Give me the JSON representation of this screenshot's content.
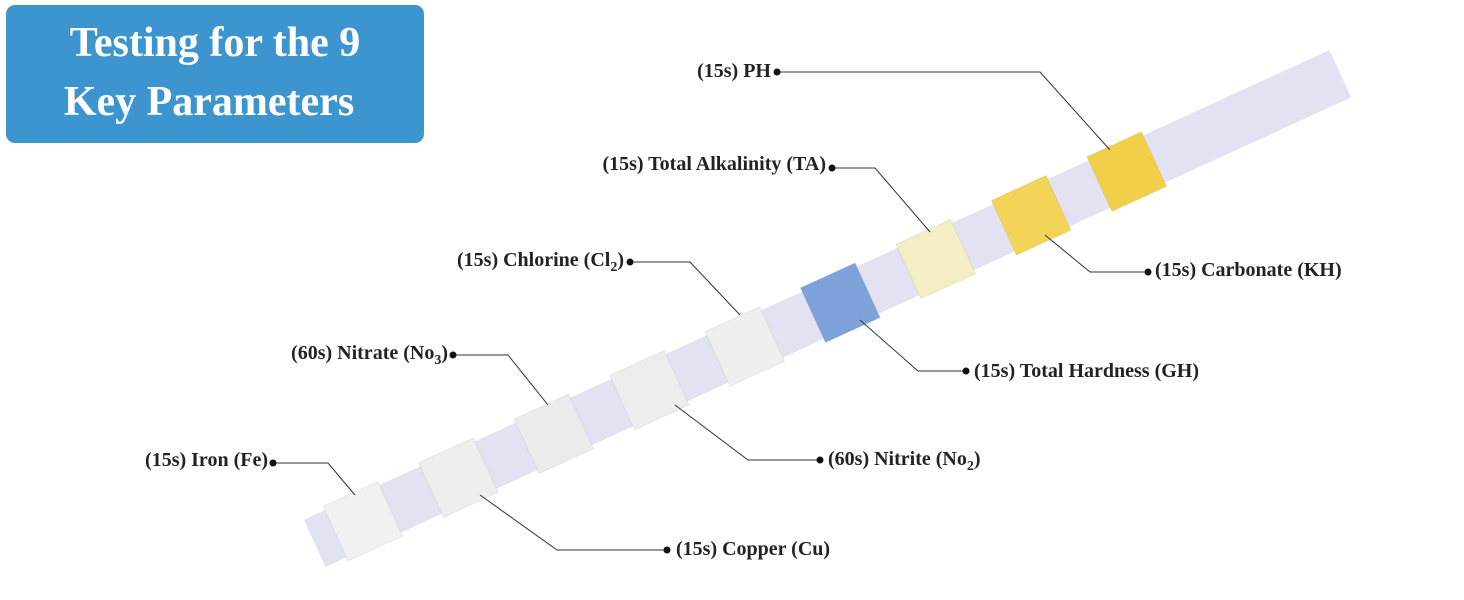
{
  "header": {
    "title_lines": [
      "Testing for the 9",
      "Key Parameters"
    ]
  },
  "parameters": [
    {
      "label": {
        "text": "(15s) Iron (Fe)"
      }
    },
    {
      "label": {
        "text": "(15s) Copper (Cu)"
      }
    },
    {
      "label": {
        "text": "(60s) Nitrate (No",
        "sub": "3",
        "end": ")"
      }
    },
    {
      "label": {
        "text": "(60s) Nitrite (No",
        "sub": "2",
        "end": ")"
      }
    },
    {
      "label": {
        "text": "(15s) Chlorine (Cl",
        "sub": "2",
        "end": ")"
      }
    },
    {
      "label": {
        "text": "(15s) Total Hardness (GH)"
      }
    },
    {
      "label": {
        "text": "(15s) Total Alkalinity (TA)"
      }
    },
    {
      "label": {
        "text": "(15s) Carbonate (KH)"
      }
    },
    {
      "label": {
        "text": "(15s) PH"
      }
    }
  ]
}
